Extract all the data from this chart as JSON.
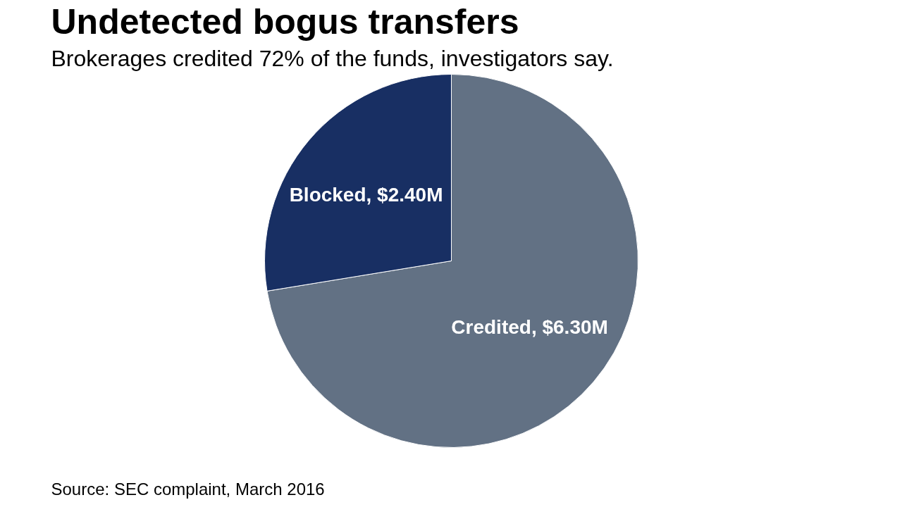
{
  "chart_data": {
    "type": "pie",
    "title": "Undetected bogus transfers",
    "subtitle": "Brokerages credited 72% of the funds, investigators say.",
    "categories": [
      "Credited",
      "Blocked"
    ],
    "values": [
      6.3,
      2.4
    ],
    "colors": [
      "#627184",
      "#182f63"
    ],
    "value_labels": [
      "$6.30M",
      "$2.40M"
    ],
    "annotations": [
      "Source: SEC complaint, March 2016"
    ]
  }
}
